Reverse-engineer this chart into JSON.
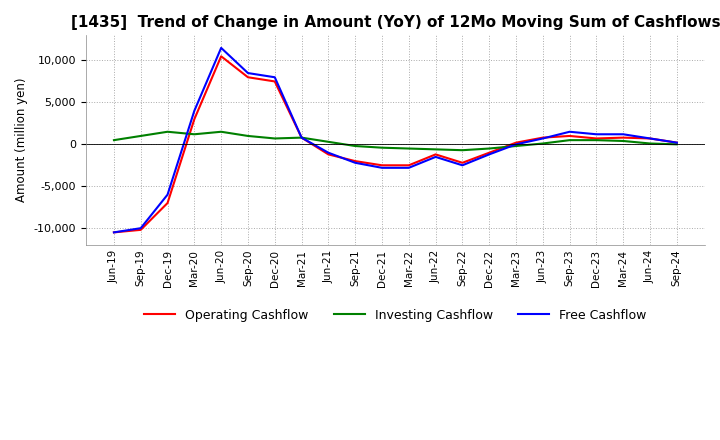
{
  "title": "[1435]  Trend of Change in Amount (YoY) of 12Mo Moving Sum of Cashflows",
  "ylabel": "Amount (million yen)",
  "ylim": [
    -12000,
    13000
  ],
  "yticks": [
    -10000,
    -5000,
    0,
    5000,
    10000
  ],
  "x_labels": [
    "Jun-19",
    "Sep-19",
    "Dec-19",
    "Mar-20",
    "Jun-20",
    "Sep-20",
    "Dec-20",
    "Mar-21",
    "Jun-21",
    "Sep-21",
    "Dec-21",
    "Mar-22",
    "Jun-22",
    "Sep-22",
    "Dec-22",
    "Mar-23",
    "Jun-23",
    "Sep-23",
    "Dec-23",
    "Mar-24",
    "Jun-24",
    "Sep-24"
  ],
  "operating_cashflow": [
    -10500,
    -10200,
    -7000,
    3000,
    10500,
    8000,
    7500,
    800,
    -1200,
    -2000,
    -2500,
    -2500,
    -1200,
    -2200,
    -1000,
    200,
    800,
    1000,
    700,
    800,
    700,
    200
  ],
  "investing_cashflow": [
    500,
    1000,
    1500,
    1200,
    1500,
    1000,
    700,
    800,
    300,
    -200,
    -400,
    -500,
    -600,
    -700,
    -500,
    -200,
    100,
    500,
    500,
    400,
    100,
    0
  ],
  "free_cashflow": [
    -10500,
    -10000,
    -6000,
    4000,
    11500,
    8500,
    8000,
    800,
    -1000,
    -2200,
    -2800,
    -2800,
    -1500,
    -2500,
    -1200,
    0,
    700,
    1500,
    1200,
    1200,
    700,
    200
  ],
  "operating_color": "#FF0000",
  "investing_color": "#008000",
  "free_color": "#0000FF",
  "background_color": "#FFFFFF",
  "grid_color": "#AAAAAA",
  "title_fontsize": 11,
  "legend_labels": [
    "Operating Cashflow",
    "Investing Cashflow",
    "Free Cashflow"
  ]
}
